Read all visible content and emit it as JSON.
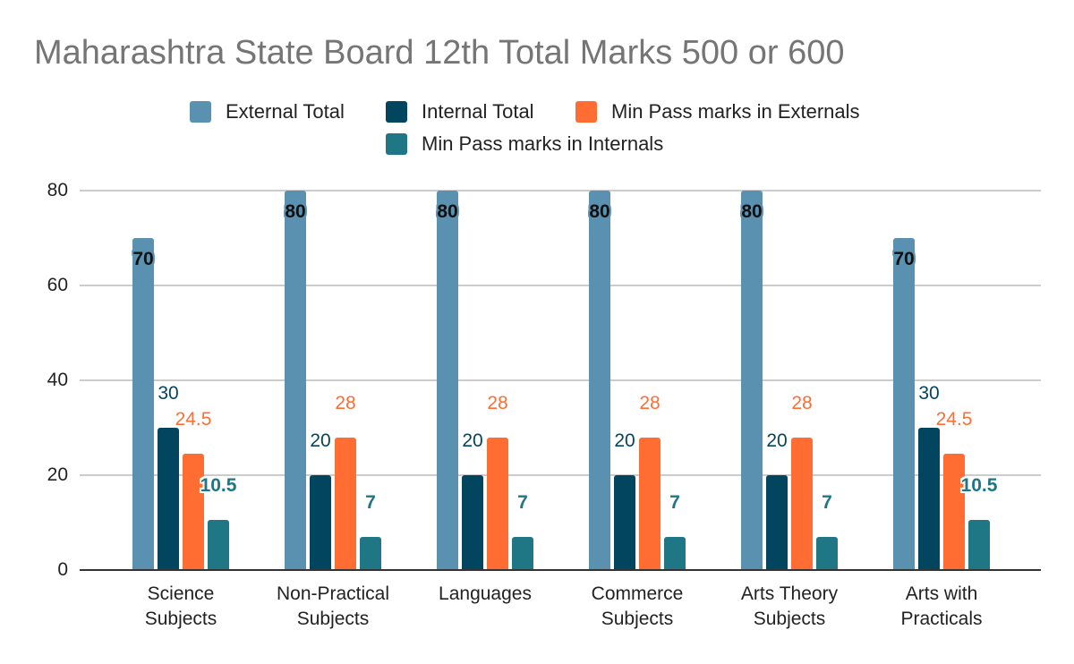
{
  "chart_data": {
    "type": "bar",
    "title": "Maharashtra State Board 12th Total Marks 500 or 600",
    "xlabel": "",
    "ylabel": "",
    "ylim": [
      0,
      80
    ],
    "yticks": [
      "0",
      "20",
      "40",
      "60",
      "80"
    ],
    "grid": true,
    "legend_position": "top",
    "categories": [
      [
        "Science",
        "Subjects"
      ],
      [
        "Non-Practical",
        "Subjects"
      ],
      [
        "Languages"
      ],
      [
        "Commerce",
        "Subjects"
      ],
      [
        "Arts Theory",
        "Subjects"
      ],
      [
        "Arts with",
        "Practicals"
      ]
    ],
    "series": [
      {
        "name": "External Total",
        "color": "#5b91b0",
        "label_color": "#111111",
        "halo": true,
        "values": [
          70,
          80,
          80,
          80,
          80,
          70
        ],
        "labels": [
          "70",
          "80",
          "80",
          "80",
          "80",
          "70"
        ]
      },
      {
        "name": "Internal Total",
        "color": "#02455f",
        "label_color": "#02455f",
        "halo": false,
        "values": [
          30,
          20,
          20,
          20,
          20,
          30
        ],
        "labels": [
          "30",
          "20",
          "20",
          "20",
          "20",
          "30"
        ]
      },
      {
        "name": "Min Pass marks in Externals",
        "color": "#ff6d33",
        "label_color": "#ff6d33",
        "halo": false,
        "values": [
          24.5,
          28,
          28,
          28,
          28,
          24.5
        ],
        "labels": [
          "24.5",
          "28",
          "28",
          "28",
          "28",
          "24.5"
        ]
      },
      {
        "name": "Min Pass marks in Internals",
        "color": "#1f7685",
        "label_color": "#1f7685",
        "halo": true,
        "values": [
          10.5,
          7,
          7,
          7,
          7,
          10.5
        ],
        "labels": [
          "10.5",
          "7",
          "7",
          "7",
          "7",
          "10.5"
        ]
      }
    ]
  }
}
